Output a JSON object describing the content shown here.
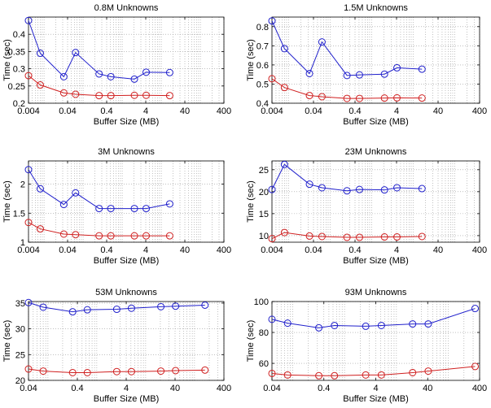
{
  "chart_data": [
    {
      "type": "line",
      "title": "0.8M Unknowns",
      "xlabel": "Buffer Size (MB)",
      "ylabel": "Time (sec)",
      "x_scale": "log",
      "xlim": [
        0.004,
        400
      ],
      "ylim": [
        0.2,
        0.45
      ],
      "x_ticks": [
        0.004,
        0.04,
        0.4,
        4,
        40,
        400
      ],
      "x_tick_labels": [
        "0.004",
        "0.04",
        "0.4",
        "4",
        "40",
        "400"
      ],
      "y_ticks": [
        0.2,
        0.25,
        0.3,
        0.35,
        0.4
      ],
      "y_tick_labels": [
        "0.2",
        "0.25",
        "0.3",
        "0.35",
        "0.4"
      ],
      "grid": "dotted",
      "legend": "none",
      "series": [
        {
          "color": "#2020cc",
          "x": [
            0.004,
            0.008,
            0.032,
            0.064,
            0.256,
            0.512,
            2.048,
            4.096,
            16.384
          ],
          "y": [
            0.44,
            0.345,
            0.277,
            0.347,
            0.285,
            0.277,
            0.27,
            0.29,
            0.289
          ]
        },
        {
          "color": "#d02020",
          "x": [
            0.004,
            0.008,
            0.032,
            0.064,
            0.256,
            0.512,
            2.048,
            4.096,
            16.384
          ],
          "y": [
            0.28,
            0.253,
            0.23,
            0.226,
            0.222,
            0.222,
            0.223,
            0.223,
            0.222
          ]
        }
      ]
    },
    {
      "type": "line",
      "title": "1.5M Unknowns",
      "xlabel": "Buffer Size (MB)",
      "ylabel": "Time (sec)",
      "x_scale": "log",
      "xlim": [
        0.004,
        400
      ],
      "ylim": [
        0.4,
        0.85
      ],
      "x_ticks": [
        0.004,
        0.04,
        0.4,
        4,
        40,
        400
      ],
      "x_tick_labels": [
        "0.004",
        "0.04",
        "0.4",
        "4",
        "40",
        "400"
      ],
      "y_ticks": [
        0.4,
        0.5,
        0.6,
        0.7,
        0.8
      ],
      "y_tick_labels": [
        "0.4",
        "0.5",
        "0.6",
        "0.7",
        "0.8"
      ],
      "grid": "dotted",
      "legend": "none",
      "series": [
        {
          "color": "#2020cc",
          "x": [
            0.004,
            0.008,
            0.032,
            0.064,
            0.256,
            0.512,
            2.048,
            4.096,
            16.384
          ],
          "y": [
            0.83,
            0.685,
            0.555,
            0.72,
            0.545,
            0.548,
            0.552,
            0.585,
            0.578
          ]
        },
        {
          "color": "#d02020",
          "x": [
            0.004,
            0.008,
            0.032,
            0.064,
            0.256,
            0.512,
            2.048,
            4.096,
            16.384
          ],
          "y": [
            0.528,
            0.482,
            0.44,
            0.434,
            0.425,
            0.425,
            0.427,
            0.428,
            0.427
          ]
        }
      ]
    },
    {
      "type": "line",
      "title": "3M Unknowns",
      "xlabel": "Buffer Size (MB)",
      "ylabel": "Time (sec)",
      "x_scale": "log",
      "xlim": [
        0.004,
        400
      ],
      "ylim": [
        1,
        2.4
      ],
      "x_ticks": [
        0.004,
        0.04,
        0.4,
        4,
        40,
        400
      ],
      "x_tick_labels": [
        "0.004",
        "0.04",
        "0.4",
        "4",
        "40",
        "400"
      ],
      "y_ticks": [
        1,
        1.5,
        2
      ],
      "y_tick_labels": [
        "1",
        "1.5",
        "2"
      ],
      "grid": "dotted",
      "legend": "none",
      "series": [
        {
          "color": "#2020cc",
          "x": [
            0.004,
            0.008,
            0.032,
            0.064,
            0.256,
            0.512,
            2.048,
            4.096,
            16.384
          ],
          "y": [
            2.25,
            1.92,
            1.65,
            1.85,
            1.58,
            1.58,
            1.58,
            1.58,
            1.66
          ]
        },
        {
          "color": "#d02020",
          "x": [
            0.004,
            0.008,
            0.032,
            0.064,
            0.256,
            0.512,
            2.048,
            4.096,
            16.384
          ],
          "y": [
            1.34,
            1.23,
            1.14,
            1.13,
            1.11,
            1.11,
            1.11,
            1.11,
            1.11
          ]
        }
      ]
    },
    {
      "type": "line",
      "title": "23M Unknowns",
      "xlabel": "Buffer Size (MB)",
      "ylabel": "Time (sec)",
      "x_scale": "log",
      "xlim": [
        0.004,
        400
      ],
      "ylim": [
        8.5,
        27
      ],
      "x_ticks": [
        0.004,
        0.04,
        0.4,
        4,
        40,
        400
      ],
      "x_tick_labels": [
        "0.004",
        "0.04",
        "0.4",
        "4",
        "40",
        "400"
      ],
      "y_ticks": [
        10,
        15,
        20,
        25
      ],
      "y_tick_labels": [
        "10",
        "15",
        "20",
        "25"
      ],
      "grid": "dotted",
      "legend": "none",
      "series": [
        {
          "color": "#2020cc",
          "x": [
            0.004,
            0.008,
            0.032,
            0.064,
            0.256,
            0.512,
            2.048,
            4.096,
            16.384
          ],
          "y": [
            20.5,
            26.2,
            21.7,
            20.9,
            20.2,
            20.5,
            20.4,
            20.9,
            20.7
          ]
        },
        {
          "color": "#d02020",
          "x": [
            0.004,
            0.008,
            0.032,
            0.064,
            0.256,
            0.512,
            2.048,
            4.096,
            16.384
          ],
          "y": [
            9.3,
            10.7,
            9.9,
            9.8,
            9.6,
            9.6,
            9.7,
            9.7,
            9.8
          ]
        }
      ]
    },
    {
      "type": "line",
      "title": "53M Unknowns",
      "xlabel": "Buffer Size (MB)",
      "ylabel": "Time (sec)",
      "x_scale": "log",
      "xlim": [
        0.04,
        400
      ],
      "ylim": [
        20,
        35.3
      ],
      "x_ticks": [
        0.04,
        0.4,
        4,
        40,
        400
      ],
      "x_tick_labels": [
        "0.04",
        "0.4",
        "4",
        "40",
        "400"
      ],
      "y_ticks": [
        20,
        25,
        30,
        35
      ],
      "y_tick_labels": [
        "20",
        "25",
        "30",
        "35"
      ],
      "grid": "dotted",
      "legend": "none",
      "series": [
        {
          "color": "#2020cc",
          "x": [
            0.04,
            0.08,
            0.32,
            0.64,
            2.56,
            5.12,
            20.48,
            40.96,
            163.84
          ],
          "y": [
            35.1,
            34.2,
            33.3,
            33.7,
            33.8,
            34.0,
            34.3,
            34.4,
            34.6
          ]
        },
        {
          "color": "#d02020",
          "x": [
            0.04,
            0.08,
            0.32,
            0.64,
            2.56,
            5.12,
            20.48,
            40.96,
            163.84
          ],
          "y": [
            22.2,
            21.8,
            21.5,
            21.5,
            21.7,
            21.7,
            21.8,
            21.9,
            22.0
          ]
        }
      ]
    },
    {
      "type": "line",
      "title": "93M Unknowns",
      "xlabel": "Buffer Size (MB)",
      "ylabel": "Time (sec)",
      "x_scale": "log",
      "xlim": [
        0.04,
        400
      ],
      "ylim": [
        49,
        100
      ],
      "x_ticks": [
        0.04,
        0.4,
        4,
        40,
        400
      ],
      "x_tick_labels": [
        "0.04",
        "0.4",
        "4",
        "40",
        "400"
      ],
      "y_ticks": [
        60,
        80,
        100
      ],
      "y_tick_labels": [
        "60",
        "80",
        "100"
      ],
      "grid": "dotted",
      "legend": "none",
      "series": [
        {
          "color": "#2020cc",
          "x": [
            0.04,
            0.08,
            0.32,
            0.64,
            2.56,
            5.12,
            20.48,
            40.96,
            327.68
          ],
          "y": [
            88.5,
            86,
            83,
            84.5,
            84,
            84.5,
            85.5,
            85.5,
            95.5
          ]
        },
        {
          "color": "#d02020",
          "x": [
            0.04,
            0.08,
            0.32,
            0.64,
            2.56,
            5.12,
            20.48,
            40.96,
            327.68
          ],
          "y": [
            53.5,
            52.5,
            52,
            52,
            52.5,
            52.5,
            54,
            55,
            58
          ]
        }
      ]
    }
  ]
}
